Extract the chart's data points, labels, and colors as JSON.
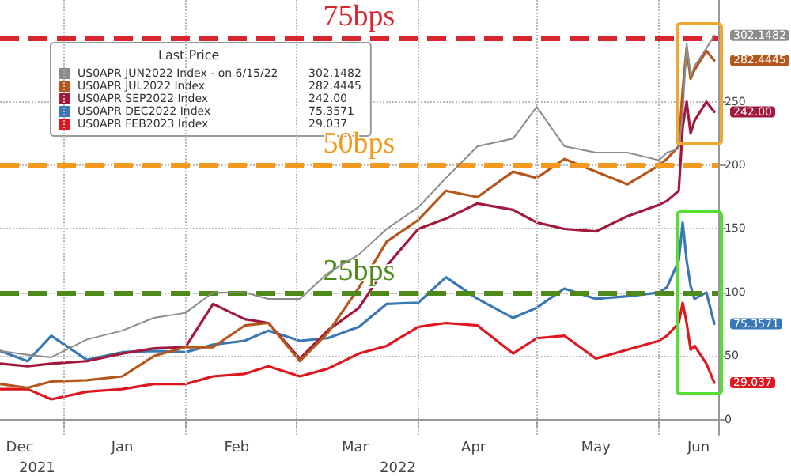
{
  "chart_data": {
    "type": "line",
    "x": [
      "2021-12-16",
      "2021-12-23",
      "2021-12-29",
      "2022-01-07",
      "2022-01-16",
      "2022-01-24",
      "2022-02-01",
      "2022-02-08",
      "2022-02-16",
      "2022-02-22",
      "2022-03-02",
      "2022-03-09",
      "2022-03-17",
      "2022-03-24",
      "2022-04-01",
      "2022-04-08",
      "2022-04-16",
      "2022-04-25",
      "2022-05-01",
      "2022-05-08",
      "2022-05-16",
      "2022-05-24",
      "2022-06-01",
      "2022-06-03",
      "2022-06-06",
      "2022-06-07",
      "2022-06-08",
      "2022-06-09",
      "2022-06-10",
      "2022-06-13",
      "2022-06-15"
    ],
    "series": [
      {
        "name": "US0APR JUN2022 Index - on 6/15/22",
        "color": "#8c8c8c",
        "values": [
          54,
          51,
          49,
          63,
          70,
          80,
          84,
          100,
          100,
          95,
          95,
          115,
          130,
          150,
          167,
          190,
          215,
          221,
          246,
          215,
          210,
          210,
          204,
          210,
          213,
          240,
          296,
          270,
          278,
          292,
          302.1482
        ],
        "value_labels": [
          null,
          null,
          null,
          null,
          null,
          null,
          null,
          null,
          null,
          null,
          null,
          null,
          null,
          null,
          null,
          null,
          null,
          null,
          null,
          null,
          null,
          null,
          null,
          null,
          null,
          null,
          null,
          null,
          null,
          null,
          "302.1482"
        ]
      },
      {
        "name": "US0APR JUL2022 Index",
        "color": "#b5561c",
        "values": [
          28,
          25,
          30,
          31,
          34,
          50,
          57,
          57,
          74,
          76,
          46,
          68,
          104,
          140,
          157,
          180,
          175,
          195,
          190,
          205,
          195,
          185,
          200,
          205,
          215,
          260,
          292,
          268,
          275,
          290,
          282.4445
        ],
        "value_labels": [
          null,
          null,
          null,
          null,
          null,
          null,
          null,
          null,
          null,
          null,
          null,
          null,
          null,
          null,
          null,
          null,
          null,
          null,
          null,
          null,
          null,
          null,
          null,
          null,
          null,
          null,
          null,
          null,
          null,
          null,
          "282.4445"
        ]
      },
      {
        "name": "US0APR SEP2022 Index",
        "color": "#a3193e",
        "values": [
          44,
          42,
          44,
          46,
          52,
          56,
          57,
          91,
          79,
          76,
          48,
          70,
          88,
          121,
          150,
          158,
          170,
          165,
          155,
          150,
          148,
          160,
          169,
          172,
          180,
          230,
          250,
          225,
          235,
          250,
          242
        ],
        "value_labels": [
          null,
          null,
          null,
          null,
          null,
          null,
          null,
          null,
          null,
          null,
          null,
          null,
          null,
          null,
          null,
          null,
          null,
          null,
          null,
          null,
          null,
          null,
          null,
          null,
          null,
          null,
          null,
          null,
          null,
          null,
          "242.00"
        ]
      },
      {
        "name": "US0APR DEC2022 Index",
        "color": "#3a78b5",
        "values": [
          54,
          46,
          66,
          47,
          53,
          54,
          53,
          59,
          62,
          70,
          62,
          64,
          73,
          91,
          92,
          112,
          95,
          80,
          88,
          103,
          95,
          97,
          100,
          104,
          125,
          155,
          125,
          105,
          95,
          100,
          75.3571
        ],
        "value_labels": [
          null,
          null,
          null,
          null,
          null,
          null,
          null,
          null,
          null,
          null,
          null,
          null,
          null,
          null,
          null,
          null,
          null,
          null,
          null,
          null,
          null,
          null,
          null,
          null,
          null,
          null,
          null,
          null,
          null,
          null,
          "75.3571"
        ]
      },
      {
        "name": "US0APR FEB2023 Index",
        "color": "#e0161e",
        "values": [
          24,
          24,
          16,
          22,
          24,
          28,
          28,
          34,
          36,
          42,
          34,
          40,
          52,
          58,
          73,
          76,
          74,
          52,
          64,
          66,
          48,
          55,
          62,
          66,
          76,
          92,
          76,
          55,
          58,
          44,
          29.037
        ],
        "value_labels": [
          null,
          null,
          null,
          null,
          null,
          null,
          null,
          null,
          null,
          null,
          null,
          null,
          null,
          null,
          null,
          null,
          null,
          null,
          null,
          null,
          null,
          null,
          null,
          null,
          null,
          null,
          null,
          null,
          null,
          null,
          "29.037"
        ]
      }
    ],
    "legend_title": "Last Price",
    "legend": "top left",
    "ylim": [
      -12,
      330
    ],
    "yticks": [
      0,
      50,
      100,
      150,
      200,
      250
    ],
    "xlim": [
      "2021-12-16",
      "2022-06-16"
    ],
    "xticks": [
      {
        "value": "2021-12-21",
        "label": "Dec"
      },
      {
        "value": "2022-01-01",
        "label": null
      },
      {
        "value": "2022-01-16",
        "label": "Jan"
      },
      {
        "value": "2022-02-01",
        "label": null
      },
      {
        "value": "2022-02-14",
        "label": "Feb"
      },
      {
        "value": "2022-03-01",
        "label": null
      },
      {
        "value": "2022-03-16",
        "label": "Mar"
      },
      {
        "value": "2022-04-01",
        "label": null
      },
      {
        "value": "2022-04-15",
        "label": "Apr"
      },
      {
        "value": "2022-05-01",
        "label": null
      },
      {
        "value": "2022-05-16",
        "label": "May"
      },
      {
        "value": "2022-06-01",
        "label": null
      },
      {
        "value": "2022-06-11",
        "label": "Jun"
      }
    ],
    "ref_lines": [
      {
        "axis": "y",
        "value": 300,
        "label": "75bps",
        "color": "#d7262e",
        "line_style": "dashed"
      },
      {
        "axis": "y",
        "value": 200,
        "label": "50bps",
        "color": "#f39a1e",
        "line_style": "dashed"
      },
      {
        "axis": "y",
        "value": 100,
        "label": "25bps",
        "color": "#4d8a1a",
        "line_style": "dashed"
      }
    ],
    "annotations": [
      "2021",
      "2022"
    ],
    "grid": true,
    "marker": "none",
    "line_style": "solid"
  }
}
